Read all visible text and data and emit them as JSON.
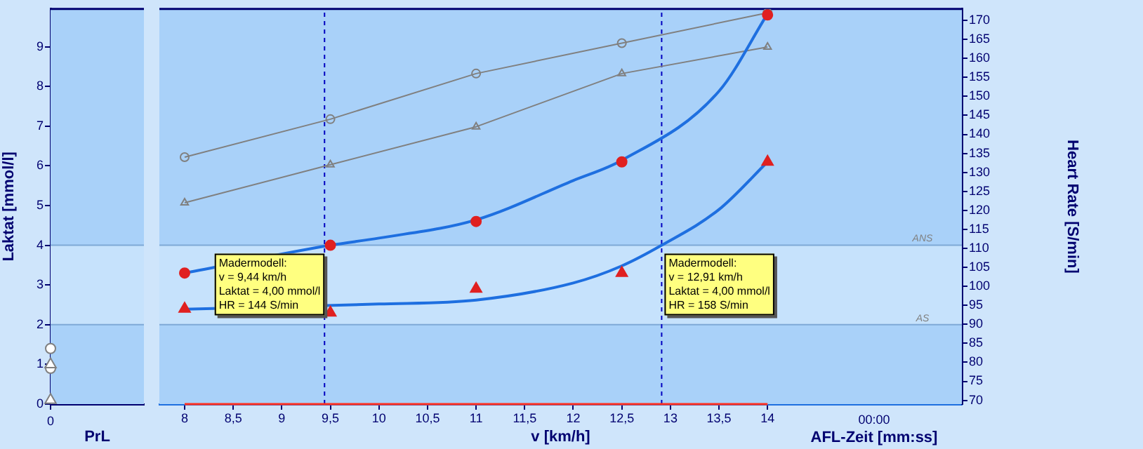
{
  "chart_data": [
    {
      "type": "scatter",
      "xlabel": "PrL",
      "ylabel": "Laktat [mmol/l]",
      "categories": [
        "0"
      ],
      "ylim": [
        0,
        9.95
      ],
      "yticks": [
        0,
        1,
        2,
        3,
        4,
        5,
        6,
        7,
        8,
        9
      ],
      "series": [
        {
          "color": "#ffffff",
          "marker": "circle",
          "values": [
            1.4
          ]
        },
        {
          "color": "#ffffff",
          "marker": "circle",
          "values": [
            0.9
          ]
        },
        {
          "color": "#ffffff",
          "marker": "triangle",
          "values": [
            1.0
          ]
        },
        {
          "color": "#ffffff",
          "marker": "triangle",
          "values": [
            0.1
          ]
        }
      ],
      "bands": [
        {
          "axis": "y",
          "from": 2,
          "to": 4,
          "color": "#c6e2fc"
        }
      ],
      "ref_lines": [
        {
          "axis": "y",
          "value": 4,
          "color": "#7fa9d6"
        },
        {
          "axis": "y",
          "value": 2,
          "color": "#7fa9d6"
        }
      ]
    },
    {
      "type": "scatter",
      "xlabel": "v [km/h]",
      "y2label": "Heart Rate [S/min]",
      "xlim": [
        7.74,
        16
      ],
      "xticks": [
        8,
        {
          "value": 8.5,
          "label": "8,5"
        },
        9,
        {
          "value": 9.5,
          "label": "9,5"
        },
        10,
        {
          "value": 10.5,
          "label": "10,5"
        },
        11,
        {
          "value": 11.5,
          "label": "11,5"
        },
        12,
        {
          "value": 12.5,
          "label": "12,5"
        },
        13,
        {
          "value": 13.5,
          "label": "13,5"
        },
        14
      ],
      "ylim": [
        0,
        9.95
      ],
      "y2lim": [
        69,
        173
      ],
      "y2ticks": [
        70,
        75,
        80,
        85,
        90,
        95,
        100,
        105,
        110,
        115,
        120,
        125,
        130,
        135,
        140,
        145,
        150,
        155,
        160,
        165,
        170
      ],
      "tick_labels": [
        "x",
        "y2"
      ],
      "series": [
        {
          "type": "line",
          "color": "#808080",
          "marker": "circle",
          "axis": "y2",
          "x": [
            8,
            9.5,
            11,
            12.5,
            14
          ],
          "values": [
            134,
            144,
            156,
            164,
            172
          ]
        },
        {
          "type": "line",
          "color": "#808080",
          "marker": "triangle",
          "axis": "y2",
          "x": [
            8,
            9.5,
            11,
            12.5,
            14
          ],
          "values": [
            122,
            132,
            142,
            156,
            163
          ]
        },
        {
          "type": "line",
          "color": "#1e6fe0",
          "marker": "none",
          "x": [
            8,
            9.5,
            10,
            11,
            12,
            12.5,
            13.5,
            14
          ],
          "values": [
            3.3,
            4.0,
            4.18,
            4.64,
            5.63,
            6.14,
            7.88,
            9.83
          ]
        },
        {
          "type": "line",
          "color": "#1e6fe0",
          "marker": "none",
          "x": [
            8,
            10,
            11,
            12,
            12.5,
            12.91,
            13.5,
            14
          ],
          "values": [
            2.39,
            2.52,
            2.62,
            3.05,
            3.48,
            4.0,
            4.9,
            6.1
          ]
        },
        {
          "color": "#e02020",
          "marker": "circle",
          "x": [
            8,
            9.5,
            11,
            12.5,
            14
          ],
          "values": [
            3.3,
            4.0,
            4.6,
            6.1,
            9.8
          ]
        },
        {
          "color": "#e02020",
          "marker": "triangle",
          "x": [
            8,
            9.5,
            11,
            12.5,
            14
          ],
          "values": [
            2.4,
            2.3,
            2.9,
            3.3,
            6.1
          ]
        }
      ],
      "bands": [
        {
          "axis": "y",
          "from": 2,
          "to": 4,
          "color": "#c6e2fc"
        }
      ],
      "ref_lines": [
        {
          "axis": "y",
          "value": 4,
          "label": "ANS",
          "color": "#7fa9d6"
        },
        {
          "axis": "y",
          "value": 2,
          "label": "AS",
          "color": "#7fa9d6"
        },
        {
          "axis": "x",
          "value": 9.44,
          "color": "#0000c0",
          "line_style": "dashed"
        },
        {
          "axis": "x",
          "value": 12.91,
          "color": "#0000c0",
          "line_style": "dashed"
        }
      ],
      "annotations": [
        {
          "text": "Madermodell:\nv = 9,44 km/h\nLaktat = 4,00 mmol/l\nHR = 144 S/min",
          "x": 9.44,
          "y": 4
        },
        {
          "text": "Madermodell:\nv = 12,91 km/h\nLaktat = 4,00 mmol/l\nHR = 158 S/min",
          "x": 12.91,
          "y": 4
        }
      ]
    },
    {
      "type": "other",
      "xlabel": "AFL-Zeit [mm:ss]",
      "categories": [
        "00:00"
      ]
    }
  ]
}
